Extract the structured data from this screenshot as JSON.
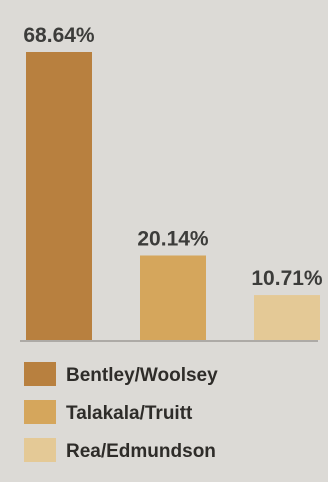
{
  "chart_data": {
    "type": "bar",
    "categories": [
      "Bentley/Woolsey",
      "Talakala/Truitt",
      "Rea/Edmundson"
    ],
    "values": [
      68.64,
      20.14,
      10.71
    ],
    "value_labels": [
      "68.64%",
      "20.14%",
      "10.71%"
    ],
    "unit": "%",
    "ylim": [
      0,
      68.64
    ],
    "title": "",
    "xlabel": "",
    "ylabel": "",
    "grid": false,
    "legend_position": "bottom-left",
    "colors": [
      "#b8803f",
      "#d5a65c",
      "#e4c996"
    ]
  }
}
